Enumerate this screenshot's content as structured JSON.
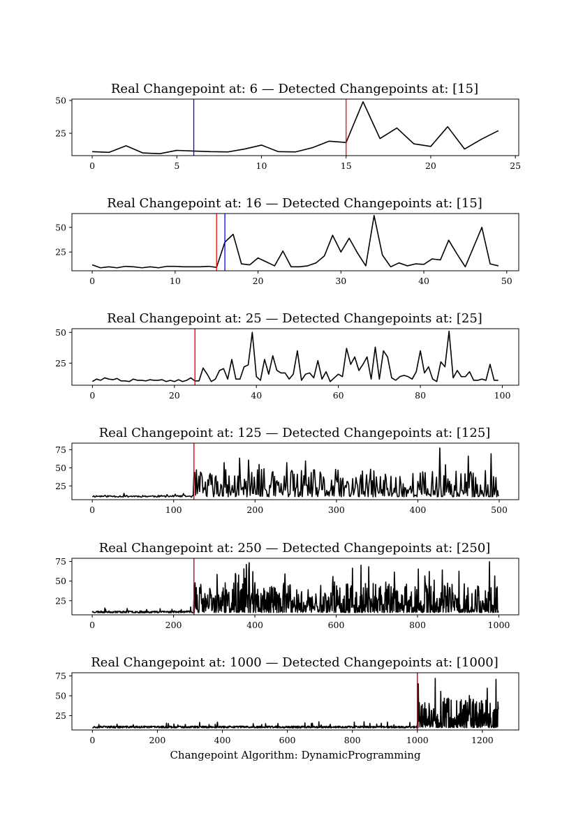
{
  "figure": {
    "xlabel": "Changepoint Algorithm: DynamicProgramming"
  },
  "colors": {
    "series": "#000000",
    "real_changepoint": "#0000ff",
    "detected_changepoint": "#ff0000",
    "background": "#ffffff"
  },
  "chart_data": [
    {
      "type": "line",
      "title": "Real Changepoint at: 6 — Detected Changepoints at: [15]",
      "real_changepoint": 6,
      "detected_changepoints": [
        15
      ],
      "xlim": [
        -1.2,
        25.2
      ],
      "ylim": [
        8,
        51
      ],
      "xticks": [
        0,
        5,
        10,
        15,
        20,
        25
      ],
      "yticks": [
        25,
        50
      ],
      "x": [
        0,
        1,
        2,
        3,
        4,
        5,
        6,
        7,
        8,
        9,
        10,
        11,
        12,
        13,
        14,
        15,
        16,
        17,
        18,
        19,
        20,
        21,
        22,
        23,
        24
      ],
      "y": [
        11,
        10.5,
        15.5,
        10,
        9.5,
        12,
        11.5,
        11,
        10.8,
        13,
        16,
        11,
        10.8,
        14,
        19,
        18,
        49,
        21,
        29,
        17,
        15,
        30,
        13,
        20.5,
        27
      ]
    },
    {
      "type": "line",
      "title": "Real Changepoint at: 16 — Detected Changepoints at: [15]",
      "real_changepoint": 16,
      "detected_changepoints": [
        15
      ],
      "xlim": [
        -2.45,
        51.45
      ],
      "ylim": [
        6,
        64
      ],
      "xticks": [
        0,
        10,
        20,
        30,
        40,
        50
      ],
      "yticks": [
        25,
        50
      ],
      "x": [
        0,
        1,
        2,
        3,
        4,
        5,
        6,
        7,
        8,
        9,
        10,
        11,
        12,
        13,
        14,
        15,
        16,
        17,
        18,
        19,
        20,
        21,
        22,
        23,
        24,
        25,
        26,
        27,
        28,
        29,
        30,
        31,
        32,
        33,
        34,
        35,
        36,
        37,
        38,
        39,
        40,
        41,
        42,
        43,
        44,
        45,
        46,
        47,
        48,
        49
      ],
      "y": [
        12,
        9,
        10,
        9,
        10.5,
        10,
        9,
        10,
        9,
        10.5,
        10.5,
        10,
        10,
        10,
        10.5,
        9.5,
        35,
        43,
        13,
        12,
        19,
        15,
        11,
        26,
        10,
        10,
        11,
        14,
        21,
        42,
        25,
        39,
        24,
        11,
        62,
        22,
        10,
        14,
        11,
        13,
        12.5,
        18,
        17,
        37,
        23,
        10,
        30,
        50,
        13,
        11
      ]
    },
    {
      "type": "line",
      "title": "Real Changepoint at: 25 — Detected Changepoints at: [25]",
      "real_changepoint": 25,
      "detected_changepoints": [
        25
      ],
      "xlim": [
        -5,
        104
      ],
      "ylim": [
        7,
        53
      ],
      "xticks": [
        0,
        20,
        40,
        60,
        80,
        100
      ],
      "yticks": [
        25,
        50
      ],
      "x": [
        0,
        1,
        2,
        3,
        4,
        5,
        6,
        7,
        8,
        9,
        10,
        11,
        12,
        13,
        14,
        15,
        16,
        17,
        18,
        19,
        20,
        21,
        22,
        23,
        24,
        25,
        26,
        27,
        28,
        29,
        30,
        31,
        32,
        33,
        34,
        35,
        36,
        37,
        38,
        39,
        40,
        41,
        42,
        43,
        44,
        45,
        46,
        47,
        48,
        49,
        50,
        51,
        52,
        53,
        54,
        55,
        56,
        57,
        58,
        59,
        60,
        61,
        62,
        63,
        64,
        65,
        66,
        67,
        68,
        69,
        70,
        71,
        72,
        73,
        74,
        75,
        76,
        77,
        78,
        79,
        80,
        81,
        82,
        83,
        84,
        85,
        86,
        87,
        88,
        89,
        90,
        91,
        92,
        93,
        94,
        95,
        96,
        97,
        98,
        99
      ],
      "y": [
        10,
        12,
        11,
        13,
        12,
        11.5,
        12.5,
        10.5,
        10.5,
        10,
        12,
        11,
        11,
        10.5,
        11.5,
        11,
        11,
        11.5,
        10,
        11,
        10,
        11.5,
        10,
        11,
        13,
        10.5,
        10.5,
        21,
        16,
        10,
        12,
        19,
        20.5,
        12,
        28,
        12,
        12,
        22,
        23.5,
        50,
        14,
        11,
        28,
        16,
        31,
        19,
        17,
        17,
        12,
        16,
        35,
        11,
        16,
        17,
        13,
        27,
        12,
        18,
        10,
        13,
        16,
        14,
        37,
        24,
        30,
        19,
        24,
        30,
        12,
        38,
        12,
        35,
        30,
        13,
        11,
        14,
        15,
        14,
        12,
        18,
        35,
        17,
        22,
        12,
        10,
        26,
        22,
        51,
        13,
        19,
        14,
        14,
        18,
        11,
        11,
        12,
        11,
        24,
        11,
        11
      ]
    },
    {
      "type": "line",
      "title": "Real Changepoint at: 125 — Detected Changepoints at: [125]",
      "real_changepoint": 125,
      "detected_changepoints": [
        125
      ],
      "xlim": [
        -25,
        524
      ],
      "ylim": [
        6,
        84
      ],
      "xticks": [
        0,
        100,
        200,
        300,
        400,
        500
      ],
      "yticks": [
        25,
        50,
        75
      ],
      "x": [],
      "y": []
    },
    {
      "type": "line",
      "title": "Real Changepoint at: 250 — Detected Changepoints at: [250]",
      "real_changepoint": 250,
      "detected_changepoints": [
        250
      ],
      "xlim": [
        -50,
        1049
      ],
      "ylim": [
        7,
        79
      ],
      "xticks": [
        0,
        200,
        400,
        600,
        800,
        1000
      ],
      "yticks": [
        25,
        50,
        75
      ],
      "x": [],
      "y": []
    },
    {
      "type": "line",
      "title": "Real Changepoint at: 1000 — Detected Changepoints at: [1000]",
      "real_changepoint": 1000,
      "detected_changepoints": [
        1000
      ],
      "xlim": [
        -63,
        1312
      ],
      "ylim": [
        7,
        79
      ],
      "xticks": [
        0,
        200,
        400,
        600,
        800,
        1000,
        1200
      ],
      "yticks": [
        25,
        50,
        75
      ],
      "x": [],
      "y": []
    }
  ]
}
